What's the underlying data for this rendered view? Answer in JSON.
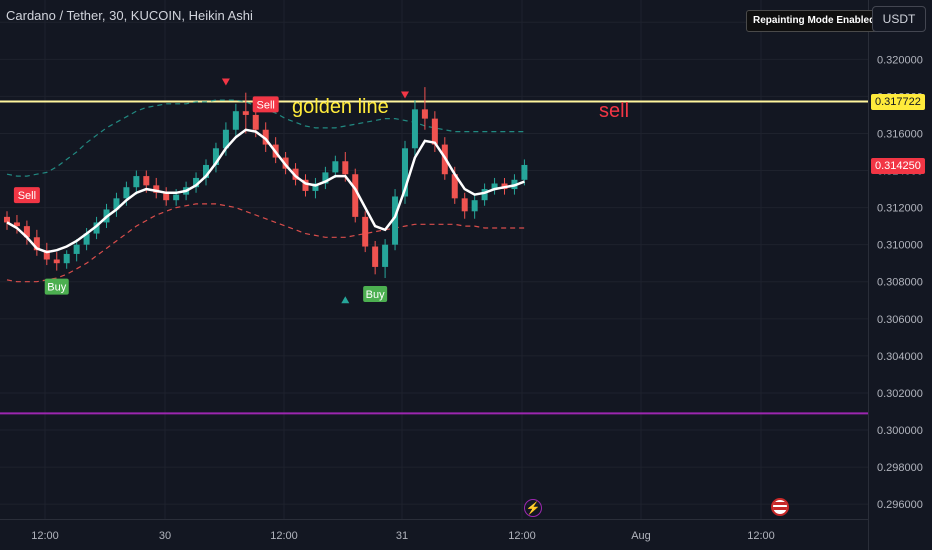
{
  "header": {
    "symbol_title": "Cardano / Tether, 30, KUCOIN, Heikin Ashi",
    "repaint_badge": "Repainting Mode Enabled",
    "currency": "USDT"
  },
  "annotations": {
    "golden_line_label": "golden line",
    "sell_label": "sell"
  },
  "price_tags": {
    "golden_line": "0.317722",
    "last_price": "0.314250"
  },
  "colors": {
    "background": "#131722",
    "up_candle": "#26a69a",
    "down_candle": "#ef5350",
    "golden_line": "#fff59d",
    "support_line": "#9c27b0",
    "arrow_up": "#2e9e4e",
    "arrow_down": "#e53935",
    "buy_label": "#4caf50",
    "sell_label": "#f23645",
    "band_upper": "#26a69a",
    "band_lower": "#ef5350"
  },
  "icons": {
    "event_1": "lightning-event-icon",
    "event_2": "us-flag-event-icon"
  },
  "chart_data": {
    "type": "candlestick",
    "symbol": "ADA/USDT",
    "interval": "30",
    "exchange": "KUCOIN",
    "candle_style": "Heikin Ashi",
    "y_ticks": [
      "0.322000",
      "0.320000",
      "0.318000",
      "0.316000",
      "0.314000",
      "0.312000",
      "0.310000",
      "0.308000",
      "0.306000",
      "0.304000",
      "0.302000",
      "0.300000",
      "0.298000",
      "0.296000"
    ],
    "y_range": [
      0.2952,
      0.3232
    ],
    "x_ticks": [
      "12:00",
      "30",
      "12:00",
      "31",
      "12:00",
      "Aug",
      "12:00"
    ],
    "x_start": "Jul 29 06:30",
    "interval_minutes": 30,
    "ohlc": [
      [
        0.3115,
        0.3118,
        0.3108,
        0.3112
      ],
      [
        0.3112,
        0.3116,
        0.3106,
        0.311
      ],
      [
        0.311,
        0.3113,
        0.31,
        0.3104
      ],
      [
        0.3104,
        0.3108,
        0.3094,
        0.3097
      ],
      [
        0.3097,
        0.3101,
        0.3089,
        0.3092
      ],
      [
        0.3092,
        0.3096,
        0.3086,
        0.309
      ],
      [
        0.309,
        0.3097,
        0.3087,
        0.3095
      ],
      [
        0.3095,
        0.3103,
        0.3091,
        0.31
      ],
      [
        0.31,
        0.3109,
        0.3097,
        0.3106
      ],
      [
        0.3106,
        0.3115,
        0.3103,
        0.3112
      ],
      [
        0.3112,
        0.3122,
        0.3109,
        0.3119
      ],
      [
        0.3119,
        0.3128,
        0.3115,
        0.3125
      ],
      [
        0.3125,
        0.3134,
        0.3121,
        0.3131
      ],
      [
        0.3131,
        0.314,
        0.3127,
        0.3137
      ],
      [
        0.3137,
        0.314,
        0.3128,
        0.3132
      ],
      [
        0.3132,
        0.3136,
        0.3125,
        0.3128
      ],
      [
        0.3128,
        0.3131,
        0.3121,
        0.3124
      ],
      [
        0.3124,
        0.313,
        0.3121,
        0.3127
      ],
      [
        0.3127,
        0.3134,
        0.3124,
        0.3131
      ],
      [
        0.3131,
        0.3139,
        0.3128,
        0.3136
      ],
      [
        0.3136,
        0.3146,
        0.3132,
        0.3143
      ],
      [
        0.3143,
        0.3155,
        0.3139,
        0.3152
      ],
      [
        0.3152,
        0.3166,
        0.3148,
        0.3162
      ],
      [
        0.3162,
        0.3176,
        0.3158,
        0.3172
      ],
      [
        0.3172,
        0.3182,
        0.316,
        0.317
      ],
      [
        0.317,
        0.3174,
        0.3158,
        0.3162
      ],
      [
        0.3162,
        0.3166,
        0.315,
        0.3154
      ],
      [
        0.3154,
        0.3158,
        0.3144,
        0.3147
      ],
      [
        0.3147,
        0.315,
        0.3138,
        0.3141
      ],
      [
        0.3141,
        0.3144,
        0.3132,
        0.3135
      ],
      [
        0.3135,
        0.3138,
        0.3126,
        0.3129
      ],
      [
        0.3129,
        0.3136,
        0.3125,
        0.3133
      ],
      [
        0.3133,
        0.3142,
        0.313,
        0.3139
      ],
      [
        0.3139,
        0.3148,
        0.3136,
        0.3145
      ],
      [
        0.3145,
        0.315,
        0.3134,
        0.3138
      ],
      [
        0.3138,
        0.3141,
        0.3112,
        0.3115
      ],
      [
        0.3115,
        0.3118,
        0.3096,
        0.3099
      ],
      [
        0.3099,
        0.3102,
        0.3084,
        0.3088
      ],
      [
        0.3088,
        0.3103,
        0.3082,
        0.31
      ],
      [
        0.31,
        0.313,
        0.3097,
        0.3126
      ],
      [
        0.3126,
        0.3156,
        0.3122,
        0.3152
      ],
      [
        0.3152,
        0.3178,
        0.3148,
        0.3173
      ],
      [
        0.3173,
        0.3185,
        0.3162,
        0.3168
      ],
      [
        0.3168,
        0.3172,
        0.315,
        0.3154
      ],
      [
        0.3154,
        0.3158,
        0.3135,
        0.3138
      ],
      [
        0.3138,
        0.3142,
        0.3122,
        0.3125
      ],
      [
        0.3125,
        0.3128,
        0.3114,
        0.3118
      ],
      [
        0.3118,
        0.3127,
        0.3114,
        0.3124
      ],
      [
        0.3124,
        0.3133,
        0.3121,
        0.313
      ],
      [
        0.313,
        0.3136,
        0.3127,
        0.3133
      ],
      [
        0.3133,
        0.3136,
        0.3127,
        0.313
      ],
      [
        0.313,
        0.3138,
        0.3127,
        0.3135
      ],
      [
        0.3135,
        0.3146,
        0.3132,
        0.3143
      ]
    ],
    "ma": [
      0.3112,
      0.3109,
      0.3104,
      0.3098,
      0.3096,
      0.3097,
      0.3099,
      0.3102,
      0.3106,
      0.311,
      0.3115,
      0.3119,
      0.3124,
      0.3128,
      0.313,
      0.3129,
      0.3128,
      0.3128,
      0.3129,
      0.3132,
      0.3137,
      0.3144,
      0.3152,
      0.3158,
      0.3162,
      0.3161,
      0.3157,
      0.315,
      0.3143,
      0.3137,
      0.3133,
      0.3132,
      0.3134,
      0.3137,
      0.3137,
      0.313,
      0.312,
      0.311,
      0.3108,
      0.3115,
      0.313,
      0.3147,
      0.3156,
      0.3155,
      0.3147,
      0.3138,
      0.313,
      0.3127,
      0.3128,
      0.313,
      0.3131,
      0.3132,
      0.3134
    ],
    "upper_band": [
      0.3138,
      0.3137,
      0.3137,
      0.3138,
      0.3139,
      0.3142,
      0.3146,
      0.315,
      0.3155,
      0.3159,
      0.3163,
      0.3166,
      0.3169,
      0.3172,
      0.3174,
      0.3175,
      0.3176,
      0.3176,
      0.3176,
      0.3177,
      0.3177,
      0.3178,
      0.3178,
      0.3178,
      0.3177,
      0.3175,
      0.3173,
      0.3171,
      0.3168,
      0.3166,
      0.3164,
      0.3163,
      0.3163,
      0.3163,
      0.3164,
      0.3165,
      0.3166,
      0.3167,
      0.3168,
      0.3168,
      0.3167,
      0.3166,
      0.3164,
      0.3163,
      0.3162,
      0.3161,
      0.3161,
      0.3161,
      0.3161,
      0.3161,
      0.3161,
      0.3161,
      0.3161
    ],
    "lower_band": [
      0.3081,
      0.308,
      0.308,
      0.308,
      0.3081,
      0.3082,
      0.3084,
      0.3087,
      0.309,
      0.3094,
      0.3098,
      0.3102,
      0.3106,
      0.311,
      0.3113,
      0.3116,
      0.3118,
      0.312,
      0.3121,
      0.3122,
      0.3122,
      0.3122,
      0.3121,
      0.312,
      0.3118,
      0.3116,
      0.3114,
      0.3112,
      0.311,
      0.3108,
      0.3106,
      0.3105,
      0.3104,
      0.3104,
      0.3104,
      0.3105,
      0.3106,
      0.3107,
      0.3108,
      0.3109,
      0.311,
      0.3111,
      0.3111,
      0.3111,
      0.3111,
      0.3111,
      0.311,
      0.311,
      0.3109,
      0.3109,
      0.3109,
      0.3109,
      0.3109
    ],
    "signals": [
      {
        "type": "Sell",
        "bar": 2,
        "price": 0.3117
      },
      {
        "type": "Buy",
        "bar": 5,
        "price": 0.3086
      },
      {
        "type": "Sell",
        "bar": 26,
        "price": 0.3166
      },
      {
        "type": "Buy",
        "bar": 37,
        "price": 0.3082
      }
    ],
    "triangle_markers": [
      {
        "type": "down",
        "bar": 22,
        "price": 0.3188
      },
      {
        "type": "down",
        "bar": 40,
        "price": 0.3181
      },
      {
        "type": "up",
        "bar": 34,
        "price": 0.307
      }
    ],
    "horizontal_lines": [
      {
        "name": "golden line",
        "price": 0.317722
      },
      {
        "name": "support",
        "price": 0.3009
      }
    ],
    "arrows": [
      {
        "direction": "up",
        "from": {
          "time": "Jul 31 13:00",
          "price": 0.3124
        },
        "to": {
          "time": "Jul 31 16:00",
          "price": 0.3166
        }
      },
      {
        "direction": "down",
        "from": {
          "time": "Jul 31 17:00",
          "price": 0.316
        },
        "to": {
          "time": "Jul 31 20:30",
          "price": 0.3108
        }
      }
    ],
    "last_price": 0.31425
  }
}
